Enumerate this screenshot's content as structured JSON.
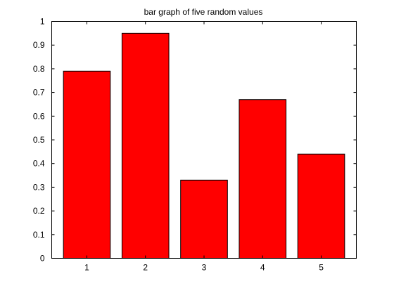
{
  "chart_data": {
    "type": "bar",
    "title": "bar graph of five random values",
    "xlabel": "",
    "ylabel": "",
    "categories": [
      "1",
      "2",
      "3",
      "4",
      "5"
    ],
    "values": [
      0.79,
      0.95,
      0.33,
      0.67,
      0.44
    ],
    "ylim": [
      0,
      1
    ],
    "yticks": [
      "0",
      "0.1",
      "0.2",
      "0.3",
      "0.4",
      "0.5",
      "0.6",
      "0.7",
      "0.8",
      "0.9",
      "1"
    ],
    "xlim": [
      0.4,
      5.6
    ],
    "bar_color": "#ff0000",
    "edge_color": "#000000",
    "grid": false,
    "legend": "none"
  }
}
